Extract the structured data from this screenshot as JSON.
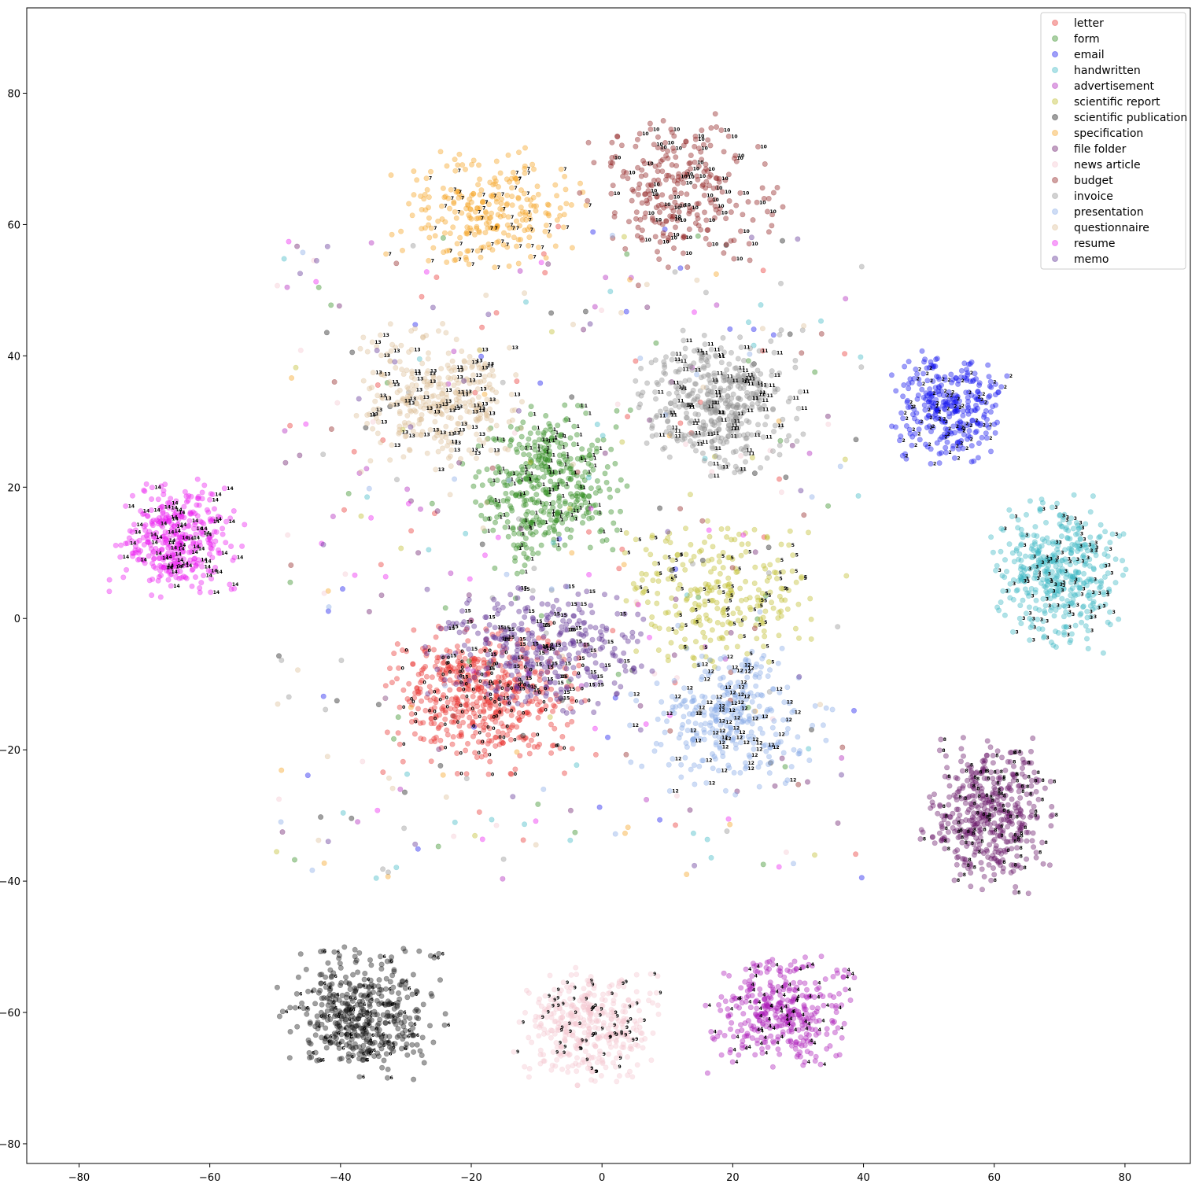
{
  "chart_data": {
    "type": "scatter",
    "title": "",
    "xlabel": "",
    "ylabel": "",
    "xlim": [
      -88,
      90
    ],
    "ylim": [
      -83,
      93
    ],
    "x_ticks": [
      -80,
      -60,
      -40,
      -20,
      0,
      20,
      40,
      60,
      80
    ],
    "y_ticks": [
      -80,
      -60,
      -40,
      -20,
      0,
      20,
      40,
      60,
      80
    ],
    "x_tick_labels": [
      "−80",
      "−60",
      "−40",
      "−20",
      "0",
      "20",
      "40",
      "60",
      "80"
    ],
    "y_tick_labels": [
      "−80",
      "−60",
      "−40",
      "−20",
      "0",
      "20",
      "40",
      "60",
      "80"
    ],
    "grid": false,
    "legend_position": "top-right",
    "marker_alpha": 0.4,
    "series": [
      {
        "name": "letter",
        "label_id": "0",
        "color": "#e8302c",
        "center": [
          -18,
          -12
        ],
        "spread": [
          12,
          9
        ],
        "count": 520
      },
      {
        "name": "form",
        "label_id": "1",
        "color": "#2c8a1c",
        "center": [
          -8,
          20
        ],
        "spread": [
          9,
          10
        ],
        "count": 430
      },
      {
        "name": "email",
        "label_id": "2",
        "color": "#1010ee",
        "center": [
          53,
          32
        ],
        "spread": [
          7,
          7
        ],
        "count": 300
      },
      {
        "name": "handwritten",
        "label_id": "3",
        "color": "#3ab7c4",
        "center": [
          70,
          7
        ],
        "spread": [
          8,
          9
        ],
        "count": 420
      },
      {
        "name": "advertisement",
        "label_id": "4",
        "color": "#ac1cb8",
        "center": [
          27,
          -60
        ],
        "spread": [
          9,
          7
        ],
        "count": 360
      },
      {
        "name": "scientific report",
        "label_id": "5",
        "color": "#bdbc29",
        "center": [
          18,
          4
        ],
        "spread": [
          12,
          9
        ],
        "count": 260
      },
      {
        "name": "scientific publication",
        "label_id": "6",
        "color": "#111111",
        "center": [
          -37,
          -60
        ],
        "spread": [
          10,
          8
        ],
        "count": 420
      },
      {
        "name": "specification",
        "label_id": "7",
        "color": "#f5a11c",
        "center": [
          -18,
          62
        ],
        "spread": [
          12,
          8
        ],
        "count": 260
      },
      {
        "name": "file folder",
        "label_id": "8",
        "color": "#661466",
        "center": [
          59,
          -30
        ],
        "spread": [
          8,
          9
        ],
        "count": 440
      },
      {
        "name": "news article",
        "label_id": "9",
        "color": "#f4c6cf",
        "center": [
          -2,
          -62
        ],
        "spread": [
          9,
          7
        ],
        "count": 380
      },
      {
        "name": "budget",
        "label_id": "10",
        "color": "#8c1a1a",
        "center": [
          12,
          65
        ],
        "spread": [
          12,
          9
        ],
        "count": 260
      },
      {
        "name": "invoice",
        "label_id": "11",
        "color": "#8f8f8f",
        "center": [
          18,
          33
        ],
        "spread": [
          10,
          9
        ],
        "count": 420
      },
      {
        "name": "presentation",
        "label_id": "12",
        "color": "#84a8e6",
        "center": [
          20,
          -15
        ],
        "spread": [
          12,
          9
        ],
        "count": 320
      },
      {
        "name": "questionnaire",
        "label_id": "13",
        "color": "#dcbe96",
        "center": [
          -25,
          33
        ],
        "spread": [
          11,
          9
        ],
        "count": 330
      },
      {
        "name": "resume",
        "label_id": "14",
        "color": "#ea18f0",
        "center": [
          -65,
          12
        ],
        "spread": [
          8,
          7
        ],
        "count": 360
      },
      {
        "name": "memo",
        "label_id": "15",
        "color": "#5a2a92",
        "center": [
          -10,
          -5
        ],
        "spread": [
          14,
          8
        ],
        "count": 340
      }
    ]
  }
}
